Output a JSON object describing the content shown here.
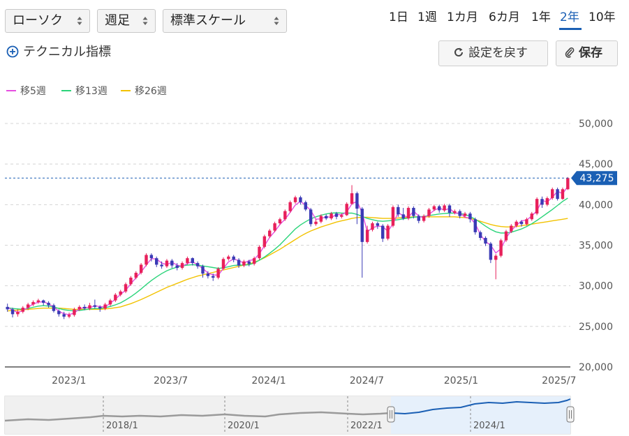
{
  "toolbar": {
    "chart_type": "ローソク",
    "period": "週足",
    "scale": "標準スケール",
    "ranges": [
      "1日",
      "1週",
      "1カ月",
      "6カ月",
      "1年",
      "2年",
      "10年"
    ],
    "active_range": "2年",
    "technical_label": "テクニカル指標",
    "reset_label": "設定を戻す",
    "save_label": "保存"
  },
  "legend": [
    {
      "label": "移5週",
      "color": "#e64ee0"
    },
    {
      "label": "移13週",
      "color": "#2bd47a"
    },
    {
      "label": "移26週",
      "color": "#f2c200"
    }
  ],
  "colors": {
    "up": "#e8205a",
    "down": "#3a3ab5",
    "accent": "#1a5fb4"
  },
  "chart_data": {
    "type": "candlestick",
    "y_ticks": [
      "50,000",
      "45,000",
      "40,000",
      "35,000",
      "30,000",
      "25,000",
      "20,000"
    ],
    "ylim": [
      20000,
      50000
    ],
    "x_ticks": [
      "2023/1",
      "2023/7",
      "2024/1",
      "2024/7",
      "2025/1",
      "2025/7"
    ],
    "last_price": 43275,
    "last_price_label": "43,275",
    "grid": true,
    "candles": [
      [
        27400,
        27100,
        27800,
        26800
      ],
      [
        27100,
        26500,
        27300,
        26100
      ],
      [
        26500,
        26800,
        27100,
        26200
      ],
      [
        26800,
        27300,
        27500,
        26600
      ],
      [
        27300,
        27700,
        27900,
        27000
      ],
      [
        27700,
        28000,
        28200,
        27500
      ],
      [
        28000,
        28200,
        28400,
        27800
      ],
      [
        28200,
        27900,
        28300,
        27600
      ],
      [
        27900,
        27600,
        28100,
        27300
      ],
      [
        27600,
        26900,
        27800,
        26700
      ],
      [
        26900,
        26500,
        27100,
        26200
      ],
      [
        26500,
        26200,
        26800,
        25900
      ],
      [
        26200,
        26400,
        26700,
        26000
      ],
      [
        26400,
        27100,
        27300,
        26200
      ],
      [
        27100,
        27400,
        27600,
        26900
      ],
      [
        27400,
        27200,
        27700,
        27000
      ],
      [
        27200,
        27600,
        27900,
        27000
      ],
      [
        27600,
        27400,
        28300,
        27200
      ],
      [
        27400,
        27200,
        27600,
        26800
      ],
      [
        27200,
        27700,
        27900,
        27000
      ],
      [
        27700,
        28200,
        28400,
        27500
      ],
      [
        28200,
        28900,
        29100,
        28000
      ],
      [
        28900,
        29300,
        29500,
        28700
      ],
      [
        29300,
        30200,
        30400,
        29100
      ],
      [
        30200,
        31000,
        31200,
        30000
      ],
      [
        31000,
        31600,
        31800,
        30800
      ],
      [
        31600,
        32600,
        32800,
        31400
      ],
      [
        32600,
        33800,
        34000,
        32400
      ],
      [
        33800,
        33400,
        34000,
        33000
      ],
      [
        33400,
        32600,
        33600,
        32300
      ],
      [
        32600,
        32400,
        33000,
        32100
      ],
      [
        32400,
        33100,
        33300,
        32200
      ],
      [
        33100,
        32500,
        33300,
        32200
      ],
      [
        32500,
        32200,
        32800,
        31900
      ],
      [
        32200,
        32800,
        33000,
        32000
      ],
      [
        32800,
        33400,
        33600,
        32600
      ],
      [
        33400,
        32800,
        33500,
        32500
      ],
      [
        32800,
        32400,
        33000,
        32100
      ],
      [
        32400,
        31500,
        32600,
        31000
      ],
      [
        31500,
        31200,
        31800,
        30900
      ],
      [
        31200,
        31000,
        31500,
        30600
      ],
      [
        31000,
        32100,
        32300,
        30800
      ],
      [
        32100,
        33300,
        33500,
        32000
      ],
      [
        33300,
        33600,
        33800,
        33100
      ],
      [
        33600,
        33200,
        33800,
        32900
      ],
      [
        33200,
        32500,
        33400,
        32200
      ],
      [
        32500,
        33000,
        33200,
        32300
      ],
      [
        33000,
        32700,
        33200,
        32400
      ],
      [
        32700,
        33400,
        33600,
        32500
      ],
      [
        33400,
        34800,
        35000,
        33200
      ],
      [
        34800,
        36100,
        36300,
        34600
      ],
      [
        36100,
        36800,
        37000,
        35900
      ],
      [
        36800,
        37700,
        37900,
        36600
      ],
      [
        37700,
        38200,
        38400,
        37500
      ],
      [
        38200,
        39200,
        39400,
        38000
      ],
      [
        39200,
        40300,
        40500,
        39000
      ],
      [
        40300,
        40900,
        41100,
        40100
      ],
      [
        40900,
        40300,
        41100,
        40000
      ],
      [
        40300,
        39400,
        40500,
        39200
      ],
      [
        39400,
        37600,
        39600,
        37300
      ],
      [
        37600,
        37900,
        38200,
        37400
      ],
      [
        37900,
        38600,
        38800,
        37700
      ],
      [
        38600,
        38300,
        38800,
        38100
      ],
      [
        38300,
        38900,
        39100,
        38100
      ],
      [
        38900,
        38500,
        39100,
        38200
      ],
      [
        38500,
        38700,
        38900,
        38300
      ],
      [
        38700,
        40100,
        40300,
        38600
      ],
      [
        40100,
        41400,
        42400,
        40000
      ],
      [
        41400,
        39500,
        41600,
        37600
      ],
      [
        39500,
        35400,
        39700,
        31000
      ],
      [
        35400,
        36900,
        37400,
        35200
      ],
      [
        36900,
        37700,
        37900,
        36700
      ],
      [
        37700,
        37400,
        37900,
        37000
      ],
      [
        37400,
        35800,
        37600,
        35400
      ],
      [
        35800,
        37400,
        37600,
        35600
      ],
      [
        37400,
        39700,
        39900,
        37200
      ],
      [
        39700,
        38800,
        40000,
        38500
      ],
      [
        38800,
        38300,
        39600,
        38100
      ],
      [
        38300,
        39600,
        39800,
        38100
      ],
      [
        39600,
        38600,
        39800,
        38300
      ],
      [
        38600,
        38000,
        38800,
        37700
      ],
      [
        38000,
        38600,
        38800,
        37800
      ],
      [
        38600,
        39400,
        39600,
        38400
      ],
      [
        39400,
        39800,
        40000,
        39200
      ],
      [
        39800,
        39300,
        40000,
        39000
      ],
      [
        39300,
        39900,
        40100,
        39100
      ],
      [
        39900,
        39000,
        40100,
        38500
      ],
      [
        39000,
        39200,
        39400,
        38800
      ],
      [
        39200,
        38600,
        39400,
        38300
      ],
      [
        38600,
        38900,
        39100,
        38400
      ],
      [
        38900,
        38200,
        39100,
        37800
      ],
      [
        38200,
        36600,
        38400,
        36300
      ],
      [
        36600,
        35900,
        36800,
        35600
      ],
      [
        35900,
        35200,
        36100,
        34900
      ],
      [
        35200,
        33200,
        35400,
        32800
      ],
      [
        33200,
        33700,
        33900,
        30800
      ],
      [
        33700,
        35600,
        35800,
        33500
      ],
      [
        35600,
        36700,
        36900,
        35400
      ],
      [
        36700,
        37400,
        37600,
        36500
      ],
      [
        37400,
        37900,
        38100,
        37200
      ],
      [
        37900,
        37600,
        38100,
        37300
      ],
      [
        37600,
        38200,
        38400,
        37400
      ],
      [
        38200,
        38900,
        39100,
        38000
      ],
      [
        38900,
        40700,
        40900,
        38700
      ],
      [
        40700,
        40000,
        41000,
        39600
      ],
      [
        40000,
        40800,
        41000,
        39800
      ],
      [
        40800,
        41900,
        42100,
        40600
      ],
      [
        41900,
        40700,
        42100,
        40500
      ],
      [
        40700,
        41900,
        42100,
        40600
      ],
      [
        41900,
        43275,
        43400,
        41800
      ]
    ],
    "ma5": [
      [
        27400,
        27300
      ],
      [
        27100,
        26900
      ],
      [
        26500,
        26950
      ],
      [
        26800,
        27050
      ],
      [
        27300,
        27400
      ],
      [
        27700,
        27800
      ],
      [
        28000,
        27950
      ],
      [
        28200,
        27900
      ],
      [
        27900,
        27600
      ],
      [
        27600,
        27200
      ],
      [
        26900,
        26800
      ],
      [
        26500,
        26600
      ],
      [
        26200,
        26700
      ],
      [
        26400,
        26900
      ],
      [
        27100,
        27200
      ],
      [
        27400,
        27300
      ],
      [
        27200,
        27400
      ],
      [
        27600,
        27500
      ],
      [
        27400,
        27450
      ],
      [
        27200,
        27600
      ],
      [
        27700,
        28000
      ],
      [
        28200,
        28500
      ],
      [
        28900,
        29000
      ],
      [
        29300,
        29600
      ],
      [
        30200,
        30300
      ],
      [
        31000,
        31000
      ],
      [
        31600,
        31800
      ],
      [
        32600,
        32500
      ],
      [
        33800,
        32900
      ],
      [
        33400,
        33200
      ],
      [
        32600,
        33000
      ],
      [
        32400,
        32800
      ],
      [
        33100,
        32700
      ],
      [
        32500,
        32600
      ],
      [
        32200,
        32600
      ],
      [
        32800,
        32700
      ],
      [
        33400,
        32600
      ],
      [
        32800,
        32300
      ],
      [
        32400,
        31900
      ],
      [
        31500,
        31600
      ],
      [
        31200,
        31500
      ],
      [
        31000,
        31600
      ],
      [
        32100,
        32200
      ],
      [
        33300,
        32600
      ],
      [
        33600,
        33000
      ],
      [
        33200,
        33000
      ],
      [
        32500,
        33100
      ],
      [
        33000,
        33200
      ],
      [
        32700,
        33800
      ],
      [
        33400,
        34500
      ],
      [
        34800,
        35100
      ],
      [
        36100,
        35800
      ],
      [
        36800,
        36600
      ],
      [
        37700,
        37400
      ],
      [
        38200,
        38200
      ],
      [
        39200,
        38900
      ],
      [
        40300,
        39600
      ],
      [
        40900,
        39900
      ],
      [
        40300,
        39500
      ],
      [
        39400,
        39200
      ],
      [
        37600,
        38800
      ],
      [
        37900,
        38600
      ],
      [
        38600,
        38500
      ],
      [
        38300,
        38500
      ],
      [
        38900,
        38700
      ],
      [
        38500,
        39000
      ],
      [
        38700,
        39500
      ],
      [
        40100,
        40100
      ],
      [
        41400,
        39400
      ],
      [
        39500,
        38500
      ],
      [
        35400,
        37900
      ],
      [
        36900,
        37400
      ],
      [
        37700,
        37000
      ],
      [
        37400,
        37200
      ],
      [
        35800,
        37600
      ],
      [
        37400,
        37900
      ],
      [
        39700,
        38300
      ],
      [
        38800,
        38500
      ],
      [
        38300,
        38600
      ],
      [
        39600,
        38800
      ],
      [
        38600,
        38600
      ],
      [
        38000,
        38700
      ],
      [
        38600,
        39000
      ],
      [
        39400,
        39200
      ],
      [
        39800,
        39400
      ],
      [
        39300,
        39300
      ],
      [
        39900,
        39200
      ],
      [
        39000,
        38900
      ],
      [
        39200,
        38700
      ],
      [
        38600,
        38300
      ],
      [
        38900,
        37800
      ],
      [
        38200,
        37100
      ],
      [
        36600,
        36000
      ],
      [
        35900,
        35000
      ],
      [
        35200,
        34800
      ],
      [
        33200,
        34900
      ],
      [
        33700,
        35400
      ],
      [
        35600,
        36200
      ],
      [
        36700,
        36900
      ],
      [
        37400,
        37500
      ],
      [
        37900,
        38100
      ],
      [
        37600,
        38600
      ],
      [
        38200,
        39000
      ],
      [
        38900,
        39600
      ],
      [
        40700,
        40300
      ],
      [
        40000,
        40700
      ],
      [
        40800,
        41000
      ],
      [
        41900,
        41400
      ],
      [
        40700,
        42000
      ],
      [
        41900,
        42600
      ]
    ],
    "ma13": [
      27300,
      27200,
      27150,
      27100,
      27200,
      27350,
      27500,
      27550,
      27500,
      27400,
      27200,
      27050,
      26950,
      26900,
      26950,
      27050,
      27150,
      27200,
      27200,
      27300,
      27450,
      27650,
      27900,
      28250,
      28650,
      29100,
      29600,
      30150,
      30650,
      31100,
      31500,
      31850,
      32100,
      32300,
      32450,
      32550,
      32600,
      32550,
      32450,
      32350,
      32250,
      32150,
      32200,
      32350,
      32500,
      32550,
      32550,
      32600,
      32800,
      33150,
      33550,
      34000,
      34500,
      35050,
      35700,
      36350,
      37000,
      37500,
      37900,
      38250,
      38500,
      38700,
      38850,
      38950,
      39000,
      38950,
      38950,
      38950,
      38800,
      38550,
      38300,
      38150,
      38000,
      37950,
      38000,
      38050,
      38150,
      38250,
      38350,
      38450,
      38500,
      38550,
      38650,
      38750,
      38850,
      38900,
      38950,
      38950,
      38900,
      38800,
      38550,
      38200,
      37800,
      37350,
      36950,
      36650,
      36500,
      36500,
      36600,
      36800,
      37000,
      37300,
      37650,
      38050,
      38500,
      38950,
      39400,
      39900,
      40400,
      40800
    ],
    "ma26": [
      26900,
      26950,
      27000,
      27050,
      27100,
      27150,
      27200,
      27250,
      27250,
      27250,
      27250,
      27200,
      27150,
      27100,
      27100,
      27100,
      27100,
      27100,
      27100,
      27150,
      27200,
      27300,
      27400,
      27600,
      27800,
      28050,
      28300,
      28600,
      28900,
      29200,
      29500,
      29800,
      30050,
      30300,
      30550,
      30800,
      31000,
      31200,
      31350,
      31500,
      31650,
      31800,
      31950,
      32100,
      32250,
      32400,
      32550,
      32700,
      32900,
      33150,
      33450,
      33800,
      34150,
      34500,
      34900,
      35300,
      35700,
      36100,
      36450,
      36750,
      37000,
      37250,
      37450,
      37650,
      37850,
      38000,
      38150,
      38300,
      38400,
      38450,
      38450,
      38400,
      38350,
      38300,
      38300,
      38300,
      38350,
      38400,
      38450,
      38500,
      38500,
      38500,
      38500,
      38500,
      38500,
      38500,
      38500,
      38500,
      38450,
      38400,
      38300,
      38150,
      37950,
      37750,
      37550,
      37400,
      37300,
      37250,
      37250,
      37300,
      37400,
      37500,
      37600,
      37700,
      37800,
      37900,
      38000,
      38100,
      38200,
      38300
    ]
  },
  "navigator": {
    "labels": [
      "2018/1",
      "2020/1",
      "2022/1",
      "2024/1"
    ]
  }
}
